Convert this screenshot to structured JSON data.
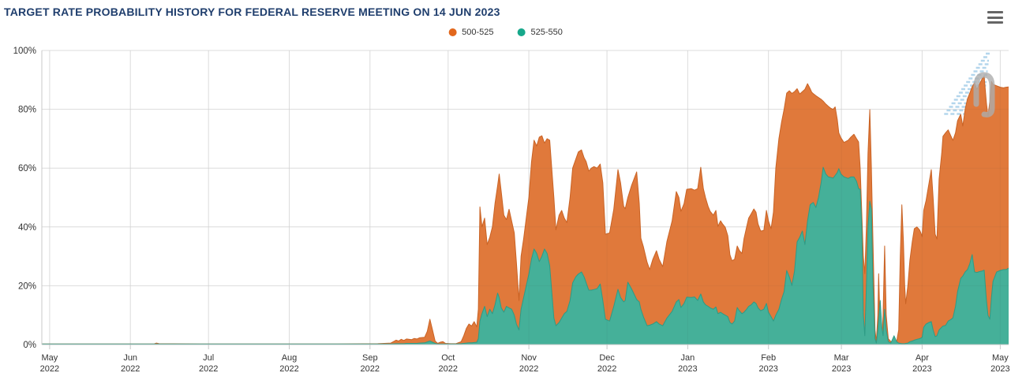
{
  "header": {
    "title": "TARGET RATE PROBABILITY HISTORY FOR FEDERAL RESERVE MEETING ON 14 JUN 2023"
  },
  "legend": {
    "items": [
      {
        "label": "500-525",
        "color": "#e2671c"
      },
      {
        "label": "525-550",
        "color": "#17a88b"
      }
    ]
  },
  "colors": {
    "title": "#1f3e6d",
    "axis_label": "#333333",
    "grid": "#e6e6e6",
    "grid_overlay": "rgba(60,60,60,0.06)",
    "axis_line": "#c8c8c8",
    "menu_icon": "#666666",
    "background": "#ffffff"
  },
  "watermark": {
    "stripe_color": "#a7cfe9",
    "glyph_color": "#acacac"
  },
  "chart_data": {
    "type": "area",
    "title": "TARGET RATE PROBABILITY HISTORY FOR FEDERAL RESERVE MEETING ON 14 JUN 2023",
    "xlabel": "",
    "ylabel": "",
    "legend_position": "top-center",
    "grid": true,
    "y_axis": {
      "range": [
        0,
        100
      ],
      "ticks": [
        {
          "value": 0,
          "label": "0%"
        },
        {
          "value": 20,
          "label": "20%"
        },
        {
          "value": 40,
          "label": "40%"
        },
        {
          "value": 60,
          "label": "60%"
        },
        {
          "value": 80,
          "label": "80%"
        },
        {
          "value": 100,
          "label": "100%"
        }
      ]
    },
    "x_axis": {
      "unit": "days-since-2022-05-01",
      "range": [
        -3,
        368.2
      ],
      "ticks": [
        {
          "day": 0,
          "month": "May",
          "year": "2022"
        },
        {
          "day": 31,
          "month": "Jun",
          "year": "2022"
        },
        {
          "day": 61,
          "month": "Jul",
          "year": "2022"
        },
        {
          "day": 92,
          "month": "Aug",
          "year": "2022"
        },
        {
          "day": 123,
          "month": "Sep",
          "year": "2022"
        },
        {
          "day": 153,
          "month": "Oct",
          "year": "2022"
        },
        {
          "day": 184,
          "month": "Nov",
          "year": "2022"
        },
        {
          "day": 214,
          "month": "Dec",
          "year": "2022"
        },
        {
          "day": 245,
          "month": "Jan",
          "year": "2023"
        },
        {
          "day": 276,
          "month": "Feb",
          "year": "2023"
        },
        {
          "day": 304,
          "month": "Mar",
          "year": "2023"
        },
        {
          "day": 335,
          "month": "Apr",
          "year": "2023"
        },
        {
          "day": 365,
          "month": "May",
          "year": "2023"
        }
      ]
    },
    "series": [
      {
        "name": "500-525",
        "fill": "#e0793b",
        "stroke": "#c96325",
        "z": "back"
      },
      {
        "name": "525-550",
        "fill": "#45b099",
        "stroke": "#2e9b85",
        "z": "front"
      }
    ],
    "points_day_500525_525550": [
      [
        -3,
        0.2,
        0.2
      ],
      [
        20,
        0.2,
        0.2
      ],
      [
        40,
        0.2,
        0.2
      ],
      [
        41,
        0.5,
        0.2
      ],
      [
        42,
        0.3,
        0.2
      ],
      [
        60,
        0.2,
        0.2
      ],
      [
        80,
        0.2,
        0.2
      ],
      [
        110,
        0.2,
        0.2
      ],
      [
        126,
        0.3,
        0.2
      ],
      [
        131,
        0.5,
        0.2
      ],
      [
        133,
        1.5,
        0.3
      ],
      [
        134,
        1.2,
        0.3
      ],
      [
        135,
        1.8,
        0.3
      ],
      [
        136,
        1.4,
        0.3
      ],
      [
        137,
        1.9,
        0.4
      ],
      [
        139,
        1.7,
        0.4
      ],
      [
        140,
        2.1,
        0.4
      ],
      [
        141,
        1.9,
        0.4
      ],
      [
        142,
        2.3,
        0.5
      ],
      [
        144,
        2.5,
        0.6
      ],
      [
        145,
        4.5,
        0.9
      ],
      [
        146,
        8.6,
        1.2
      ],
      [
        147,
        5,
        0.8
      ],
      [
        148,
        1.2,
        0.4
      ],
      [
        149,
        0.4,
        0.2
      ],
      [
        150,
        0.8,
        0.2
      ],
      [
        151,
        1,
        0.2
      ],
      [
        152,
        0.4,
        0.2
      ],
      [
        154,
        0.3,
        0.2
      ],
      [
        156,
        0.3,
        0.2
      ],
      [
        158,
        1,
        0.3
      ],
      [
        159,
        3,
        0.4
      ],
      [
        160,
        5.5,
        0.5
      ],
      [
        161,
        7,
        0.6
      ],
      [
        162,
        6.3,
        0.6
      ],
      [
        163,
        7.8,
        0.7
      ],
      [
        164,
        6,
        0.8
      ],
      [
        164.6,
        12,
        2
      ],
      [
        165.2,
        46.8,
        8
      ],
      [
        166,
        40,
        10.5
      ],
      [
        167,
        43,
        13
      ],
      [
        168,
        34,
        9.5
      ],
      [
        169,
        36.5,
        12
      ],
      [
        170,
        40,
        10.5
      ],
      [
        171,
        48,
        13.5
      ],
      [
        172,
        54,
        17.5
      ],
      [
        172.6,
        58,
        16
      ],
      [
        173.4,
        52,
        12.5
      ],
      [
        174.4,
        44,
        11
      ],
      [
        175.4,
        42.5,
        13
      ],
      [
        176.4,
        46,
        12.5
      ],
      [
        177.4,
        42,
        12
      ],
      [
        178.4,
        38,
        10
      ],
      [
        179.2,
        28,
        7
      ],
      [
        180.2,
        15,
        5
      ],
      [
        181,
        30,
        12
      ],
      [
        182,
        36,
        16
      ],
      [
        183,
        43,
        20
      ],
      [
        184,
        50,
        24
      ],
      [
        185,
        62,
        29
      ],
      [
        186,
        69.5,
        32.5
      ],
      [
        187,
        67.5,
        31
      ],
      [
        188,
        70.5,
        28.2
      ],
      [
        189,
        71,
        30
      ],
      [
        190,
        68.5,
        32.5
      ],
      [
        191,
        70,
        31
      ],
      [
        192,
        69.5,
        26.8
      ],
      [
        193.6,
        50,
        9
      ],
      [
        194.4,
        39,
        6.4
      ],
      [
        195.6,
        44,
        7.5
      ],
      [
        196.6,
        45.6,
        9
      ],
      [
        197.6,
        43,
        10.5
      ],
      [
        198.6,
        41.5,
        11.3
      ],
      [
        199.8,
        50,
        15
      ],
      [
        200.8,
        60,
        21
      ],
      [
        202,
        63,
        23
      ],
      [
        203,
        65.5,
        24
      ],
      [
        204.2,
        66.2,
        24.7
      ],
      [
        205.2,
        63.5,
        23
      ],
      [
        206,
        62.2,
        21
      ],
      [
        207,
        59,
        18.5
      ],
      [
        208,
        60,
        18.5
      ],
      [
        209,
        60.5,
        18.7
      ],
      [
        210.2,
        60,
        19
      ],
      [
        211.4,
        61.4,
        20.6
      ],
      [
        212.4,
        55,
        15
      ],
      [
        213.4,
        37.5,
        8.6
      ],
      [
        215,
        38,
        8
      ],
      [
        216.6,
        46,
        13
      ],
      [
        218.2,
        59.5,
        18.8
      ],
      [
        219.2,
        55,
        16
      ],
      [
        220.4,
        47,
        14.5
      ],
      [
        221,
        46.2,
        15
      ],
      [
        222,
        50,
        21.2
      ],
      [
        223.4,
        54,
        19
      ],
      [
        225.4,
        58.7,
        15.3
      ],
      [
        226.4,
        48,
        14.5
      ],
      [
        227,
        36.2,
        12
      ],
      [
        228,
        33.2,
        9.4
      ],
      [
        229.4,
        28,
        6.4
      ],
      [
        230.4,
        25.5,
        6.6
      ],
      [
        231.6,
        29,
        7
      ],
      [
        233,
        31.9,
        7.8
      ],
      [
        234,
        29,
        7
      ],
      [
        235.4,
        26.5,
        6.4
      ],
      [
        237,
        35,
        9
      ],
      [
        239,
        42,
        11.3
      ],
      [
        240.6,
        52,
        14.5
      ],
      [
        241.6,
        50,
        15.3
      ],
      [
        242.4,
        45.3,
        12.6
      ],
      [
        243.6,
        48,
        14
      ],
      [
        244.6,
        52.8,
        16.1
      ],
      [
        246.4,
        53,
        16
      ],
      [
        247.6,
        52.5,
        16.2
      ],
      [
        248.8,
        53,
        15
      ],
      [
        250,
        60.3,
        17.2
      ],
      [
        251,
        53,
        14.5
      ],
      [
        251.8,
        50,
        13.5
      ],
      [
        252.8,
        47,
        13
      ],
      [
        253.6,
        45.3,
        12.5
      ],
      [
        254.8,
        44,
        12
      ],
      [
        255.8,
        45.6,
        12.8
      ],
      [
        256.6,
        40.2,
        10.5
      ],
      [
        257.6,
        42.1,
        11
      ],
      [
        258.4,
        41,
        10.5
      ],
      [
        259.4,
        39.9,
        10
      ],
      [
        260.4,
        37,
        9.5
      ],
      [
        261.2,
        30.5,
        7.5
      ],
      [
        262,
        28.5,
        7
      ],
      [
        263,
        29,
        8
      ],
      [
        264,
        33.5,
        12.6
      ],
      [
        264.8,
        32,
        11.5
      ],
      [
        265.8,
        31,
        10.5
      ],
      [
        266.6,
        36,
        11
      ],
      [
        267.6,
        40,
        12
      ],
      [
        268.4,
        43,
        13
      ],
      [
        269.4,
        44.5,
        13.5
      ],
      [
        270.4,
        46.1,
        14.5
      ],
      [
        271.2,
        45,
        14
      ],
      [
        272,
        41,
        12.5
      ],
      [
        273,
        38.6,
        11.5
      ],
      [
        274.2,
        38.8,
        12
      ],
      [
        275.2,
        45.6,
        14
      ],
      [
        276,
        42,
        11
      ],
      [
        277,
        39.4,
        9.5
      ],
      [
        277.9,
        45,
        8
      ],
      [
        278.8,
        60,
        10
      ],
      [
        280,
        70,
        12
      ],
      [
        281,
        75.5,
        15.3
      ],
      [
        282,
        80,
        18
      ],
      [
        283,
        85.5,
        25.2
      ],
      [
        284,
        86.3,
        23
      ],
      [
        285,
        85.4,
        20.1
      ],
      [
        286,
        86,
        25
      ],
      [
        287,
        87,
        34.9
      ],
      [
        288,
        85.2,
        36.5
      ],
      [
        289,
        86,
        38.6
      ],
      [
        290,
        86.8,
        34
      ],
      [
        291,
        88.7,
        42
      ],
      [
        292,
        87,
        47.5
      ],
      [
        292.6,
        85.8,
        48
      ],
      [
        293.2,
        85.3,
        48.3
      ],
      [
        294.2,
        84.6,
        46.6
      ],
      [
        295.2,
        84,
        50
      ],
      [
        296.2,
        83.4,
        55
      ],
      [
        297,
        82.8,
        60.3
      ],
      [
        298,
        81.8,
        58
      ],
      [
        299,
        81,
        57
      ],
      [
        300,
        80.3,
        56.8
      ],
      [
        300.8,
        80,
        56.6
      ],
      [
        301.6,
        80.8,
        57.5
      ],
      [
        302.4,
        76.5,
        58.5
      ],
      [
        303,
        72,
        59.8
      ],
      [
        303.8,
        70.3,
        58
      ],
      [
        305,
        68.7,
        57
      ],
      [
        306.6,
        69.5,
        56.5
      ],
      [
        307.6,
        70.5,
        57
      ],
      [
        308.8,
        71.5,
        57
      ],
      [
        309.8,
        70,
        55.5
      ],
      [
        310.6,
        68.9,
        53
      ],
      [
        311.2,
        60,
        52.8
      ],
      [
        311.8,
        45,
        40
      ],
      [
        312.4,
        30,
        10
      ],
      [
        313,
        24.1,
        3
      ],
      [
        313.6,
        40,
        20
      ],
      [
        314.2,
        65,
        40
      ],
      [
        314.9,
        79.9,
        48.8
      ],
      [
        315.5,
        60,
        46
      ],
      [
        316.1,
        35,
        20
      ],
      [
        316.9,
        5,
        2
      ],
      [
        317.4,
        1,
        0.5
      ],
      [
        318,
        10,
        5
      ],
      [
        318.3,
        24.1,
        8
      ],
      [
        318.9,
        5,
        15
      ],
      [
        319.5,
        1,
        6
      ],
      [
        320,
        10,
        3
      ],
      [
        320.6,
        33.5,
        12
      ],
      [
        321.2,
        10,
        5
      ],
      [
        322,
        2,
        1
      ],
      [
        323,
        1,
        0.5
      ],
      [
        324.2,
        1.5,
        3
      ],
      [
        325.2,
        1,
        1
      ],
      [
        326,
        5,
        0.5
      ],
      [
        326.6,
        30,
        0.4
      ],
      [
        327.2,
        47.5,
        0.3
      ],
      [
        327.8,
        35,
        0.3
      ],
      [
        328.3,
        20,
        0.3
      ],
      [
        328.7,
        13.9,
        0.4
      ],
      [
        329.5,
        20,
        0.5
      ],
      [
        330.3,
        28.7,
        1
      ],
      [
        331.2,
        35,
        1.2
      ],
      [
        332,
        39.4,
        1.5
      ],
      [
        333,
        40,
        1.8
      ],
      [
        334,
        39,
        2
      ],
      [
        334.5,
        38,
        2.2
      ],
      [
        335,
        36.7,
        2.5
      ],
      [
        335.6,
        45.6,
        5.9
      ],
      [
        336.5,
        49,
        7
      ],
      [
        337.6,
        54.7,
        7.5
      ],
      [
        338.5,
        59.5,
        7.8
      ],
      [
        339.2,
        50,
        5
      ],
      [
        340,
        37.5,
        2.7
      ],
      [
        340.7,
        35.9,
        3
      ],
      [
        341.5,
        56.3,
        5
      ],
      [
        342.5,
        65,
        5.9
      ],
      [
        343,
        70.8,
        6.3
      ],
      [
        344,
        72,
        6.5
      ],
      [
        345,
        73,
        8
      ],
      [
        346,
        71,
        8.5
      ],
      [
        346.8,
        69.4,
        9.1
      ],
      [
        347.8,
        72,
        13
      ],
      [
        348.6,
        76.1,
        18
      ],
      [
        349.8,
        78.3,
        22.5
      ],
      [
        350.6,
        74.3,
        23.3
      ],
      [
        351.5,
        80,
        24.7
      ],
      [
        352.4,
        83.6,
        25.5
      ],
      [
        353.3,
        85.5,
        27.5
      ],
      [
        354.2,
        87.7,
        30.6
      ],
      [
        355.1,
        89,
        24.7
      ],
      [
        356,
        86.8,
        24.5
      ],
      [
        357,
        88.5,
        24.8
      ],
      [
        358,
        90.3,
        25
      ],
      [
        358.8,
        91.2,
        25.3
      ],
      [
        359.7,
        82,
        15
      ],
      [
        360.3,
        77.5,
        9.9
      ],
      [
        361,
        83,
        8.6
      ],
      [
        361.6,
        89.5,
        16
      ],
      [
        362.2,
        88.5,
        21.5
      ],
      [
        363.6,
        88,
        24.7
      ],
      [
        365,
        87.5,
        25.2
      ],
      [
        366.2,
        87.3,
        25.5
      ],
      [
        367.2,
        87.5,
        25.5
      ],
      [
        368.2,
        87.6,
        26
      ]
    ]
  }
}
